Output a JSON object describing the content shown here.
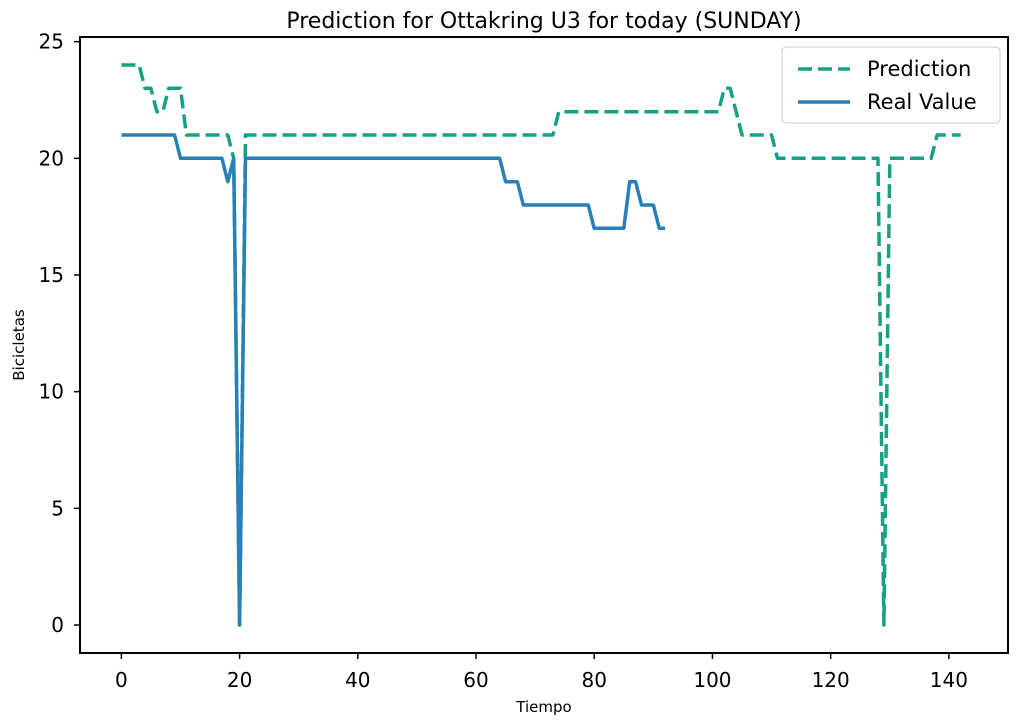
{
  "chart_data": {
    "type": "line",
    "title": "Prediction for Ottakring U3 for today (SUNDAY)",
    "xlabel": "Tiempo",
    "ylabel": "Bicicletas",
    "xlim": [
      -7,
      150
    ],
    "ylim": [
      -1.2,
      25.2
    ],
    "xticks": [
      0,
      20,
      40,
      60,
      80,
      100,
      120,
      140
    ],
    "yticks": [
      0,
      5,
      10,
      15,
      20,
      25
    ],
    "grid": false,
    "legend_position": "top-right",
    "series": [
      {
        "name": "Prediction",
        "style": "dashed",
        "color": "#16a085",
        "x": [
          0,
          3,
          4,
          5,
          6,
          7,
          8,
          9,
          10,
          11,
          17,
          18,
          19,
          20,
          21,
          72,
          73,
          74,
          100,
          101,
          102,
          103,
          104,
          105,
          109,
          110,
          111,
          127,
          128,
          129,
          130,
          136,
          137,
          138,
          140,
          142
        ],
        "y": [
          24,
          24,
          23,
          23,
          22,
          22,
          23,
          23,
          23,
          21,
          21,
          21,
          20,
          0,
          21,
          21,
          21,
          22,
          22,
          22,
          23,
          23,
          22,
          21,
          21,
          21,
          20,
          20,
          20,
          0,
          20,
          20,
          20,
          21,
          21,
          21
        ]
      },
      {
        "name": "Real Value",
        "style": "solid",
        "color": "#2980b9",
        "x": [
          0,
          9,
          10,
          17,
          18,
          19,
          20,
          21,
          64,
          65,
          67,
          68,
          79,
          80,
          85,
          86,
          87,
          88,
          90,
          91,
          92
        ],
        "y": [
          21,
          21,
          20,
          20,
          19,
          20,
          0,
          20,
          20,
          19,
          19,
          18,
          18,
          17,
          17,
          19,
          19,
          18,
          18,
          17,
          17
        ]
      }
    ]
  }
}
